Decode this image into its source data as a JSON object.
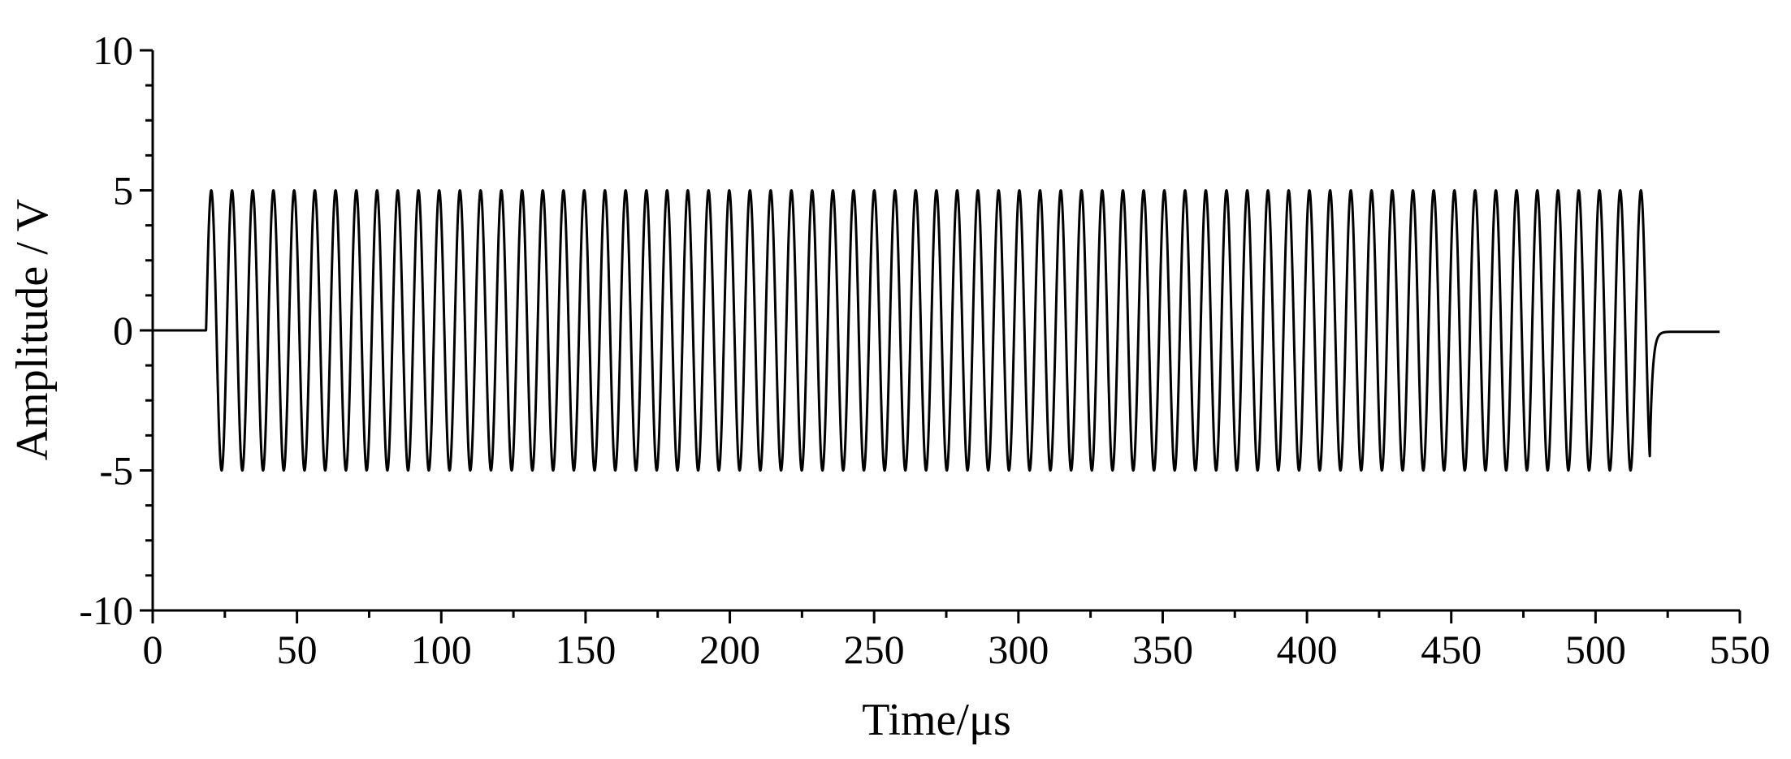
{
  "chart_data": {
    "type": "line",
    "title": "",
    "xlabel": "Time/μs",
    "ylabel": "Amplitude / V",
    "xlim": [
      0,
      550
    ],
    "ylim": [
      -10,
      10
    ],
    "x_ticks": [
      0,
      50,
      100,
      150,
      200,
      250,
      300,
      350,
      400,
      450,
      500,
      550
    ],
    "y_ticks": [
      -10,
      -5,
      0,
      5,
      10
    ],
    "x_tick_labels": [
      "0",
      "50",
      "100",
      "150",
      "200",
      "250",
      "300",
      "350",
      "400",
      "450",
      "500",
      "550"
    ],
    "y_tick_labels": [
      "-10",
      "-5",
      "0",
      "5",
      "10"
    ],
    "grid": false,
    "legend": "none",
    "series": [
      {
        "color": "#000000",
        "signal": {
          "form": "sine burst",
          "baseline": 0,
          "burst_start": 18.5,
          "burst_end": 518.8,
          "amplitude": 5,
          "period": 7.18,
          "cycles": 69.7,
          "trace_end": 543,
          "tail_level": -0.05
        }
      }
    ]
  }
}
